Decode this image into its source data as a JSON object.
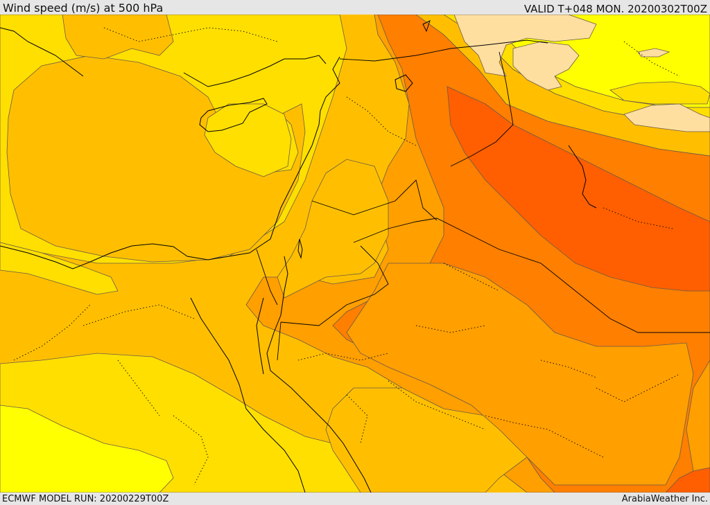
{
  "header": {
    "title": "Wind speed (m/s) at 500 hPa",
    "valid": "VALID T+048 MON. 20200302T00Z"
  },
  "footer": {
    "model_run": "ECMWF MODEL RUN: 20200229T00Z",
    "credit": "ArabiaWeather Inc."
  },
  "map": {
    "field": "wind-speed-500hPa",
    "color_bands": {
      "light_yellow": "#ffff00",
      "yellow": "#ffdf00",
      "gold": "#ffbf00",
      "orange_light": "#ff9f00",
      "orange": "#ff7f00",
      "orange_dark": "#ff5f00",
      "pale_peach": "#ffdfa0"
    }
  }
}
